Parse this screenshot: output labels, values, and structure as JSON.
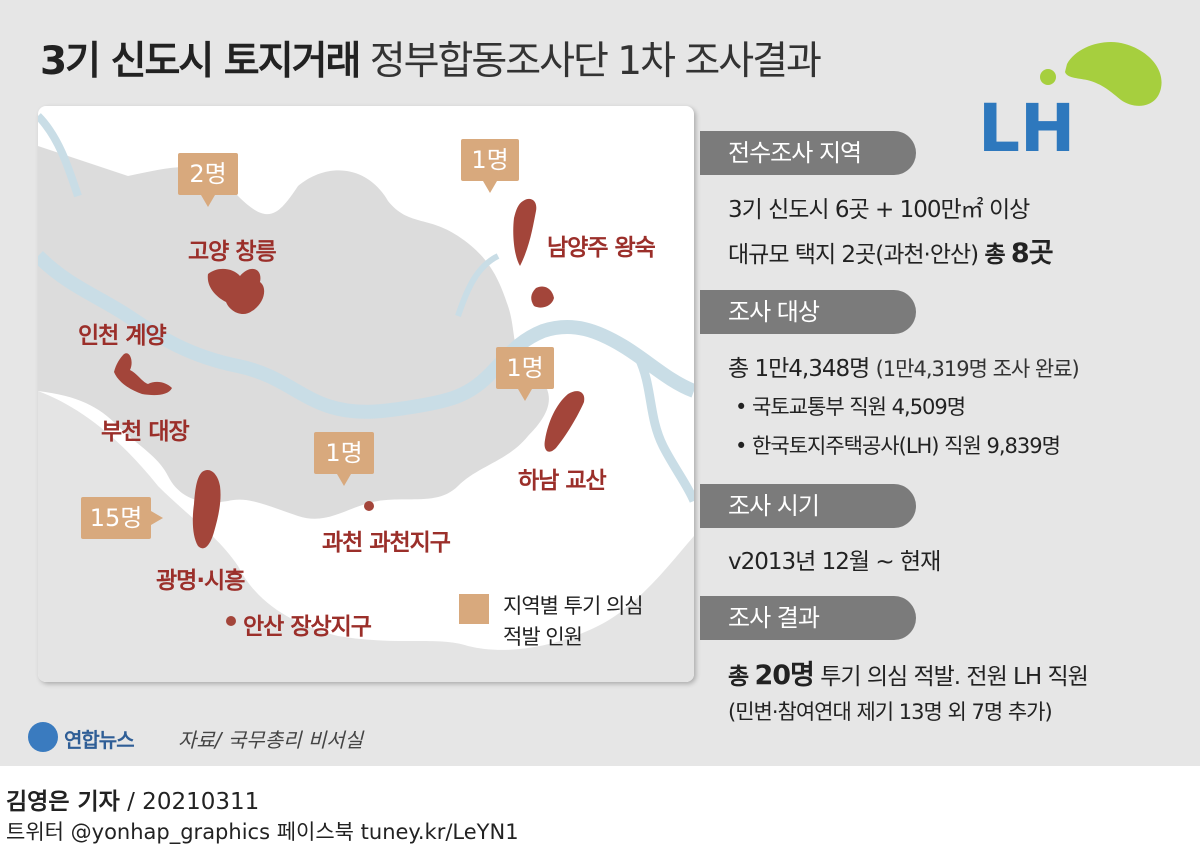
{
  "header": {
    "title_bold": "3기 신도시 토지거래",
    "title_normal": "정부합동조사단 1차 조사결과"
  },
  "logo": {
    "text": "LH",
    "colors": {
      "text": "#2e78bd",
      "leaf": "#a6cf3e"
    }
  },
  "map": {
    "badges": [
      {
        "count": "2명",
        "region": "고양 창릉"
      },
      {
        "count": "1명",
        "region": "남양주 왕숙"
      },
      {
        "count": "1명",
        "region": "하남 교산"
      },
      {
        "count": "1명",
        "region": "과천 과천지구"
      },
      {
        "count": "15명",
        "region": "광명·시흥"
      }
    ],
    "regions": {
      "goyang": "고양 창릉",
      "namyangju": "남양주 왕숙",
      "incheon": "인천 계양",
      "bucheon": "부천 대장",
      "hanam": "하남 교산",
      "gwacheon": "과천 과천지구",
      "gwangmyeong": "광명·시흥",
      "ansan": "안산 장상지구"
    },
    "legend": {
      "line1": "지역별 투기 의심",
      "line2": "적발 인원"
    },
    "colors": {
      "land": "#dcdcdc",
      "river": "#c9dde6",
      "region_fill": "#a3453a",
      "badge": "#d8a97d"
    }
  },
  "sections": [
    {
      "label": "전수조사 지역",
      "lines": [
        "3기 신도시 6곳 + 100만㎡ 이상",
        "대규모 택지 2곳(과천·안산)"
      ],
      "emph_prefix": "총",
      "emph_value": "8곳"
    },
    {
      "label": "조사 대상",
      "total": "총 1만4,348명",
      "total_note": "(1만4,319명 조사 완료)",
      "items": [
        "• 국토교통부 직원 4,509명",
        "• 한국토지주택공사(LH) 직원 9,839명"
      ]
    },
    {
      "label": "조사 시기",
      "text": "v2013년 12월 ~ 현재"
    },
    {
      "label": "조사 결과",
      "emph_prefix": "총",
      "emph_value": "20명",
      "text": "투기 의심 적발. 전원 LH 직원",
      "note": "(민변·참여연대 제기 13명 외 7명 추가)"
    }
  ],
  "source": {
    "agency": "연합뉴스",
    "ref": "자료/ 국무총리 비서실"
  },
  "footer": {
    "reporter": "김영은 기자",
    "date": "/ 20210311",
    "social": "트위터 @yonhap_graphics  페이스북 tuney.kr/LeYN1"
  }
}
